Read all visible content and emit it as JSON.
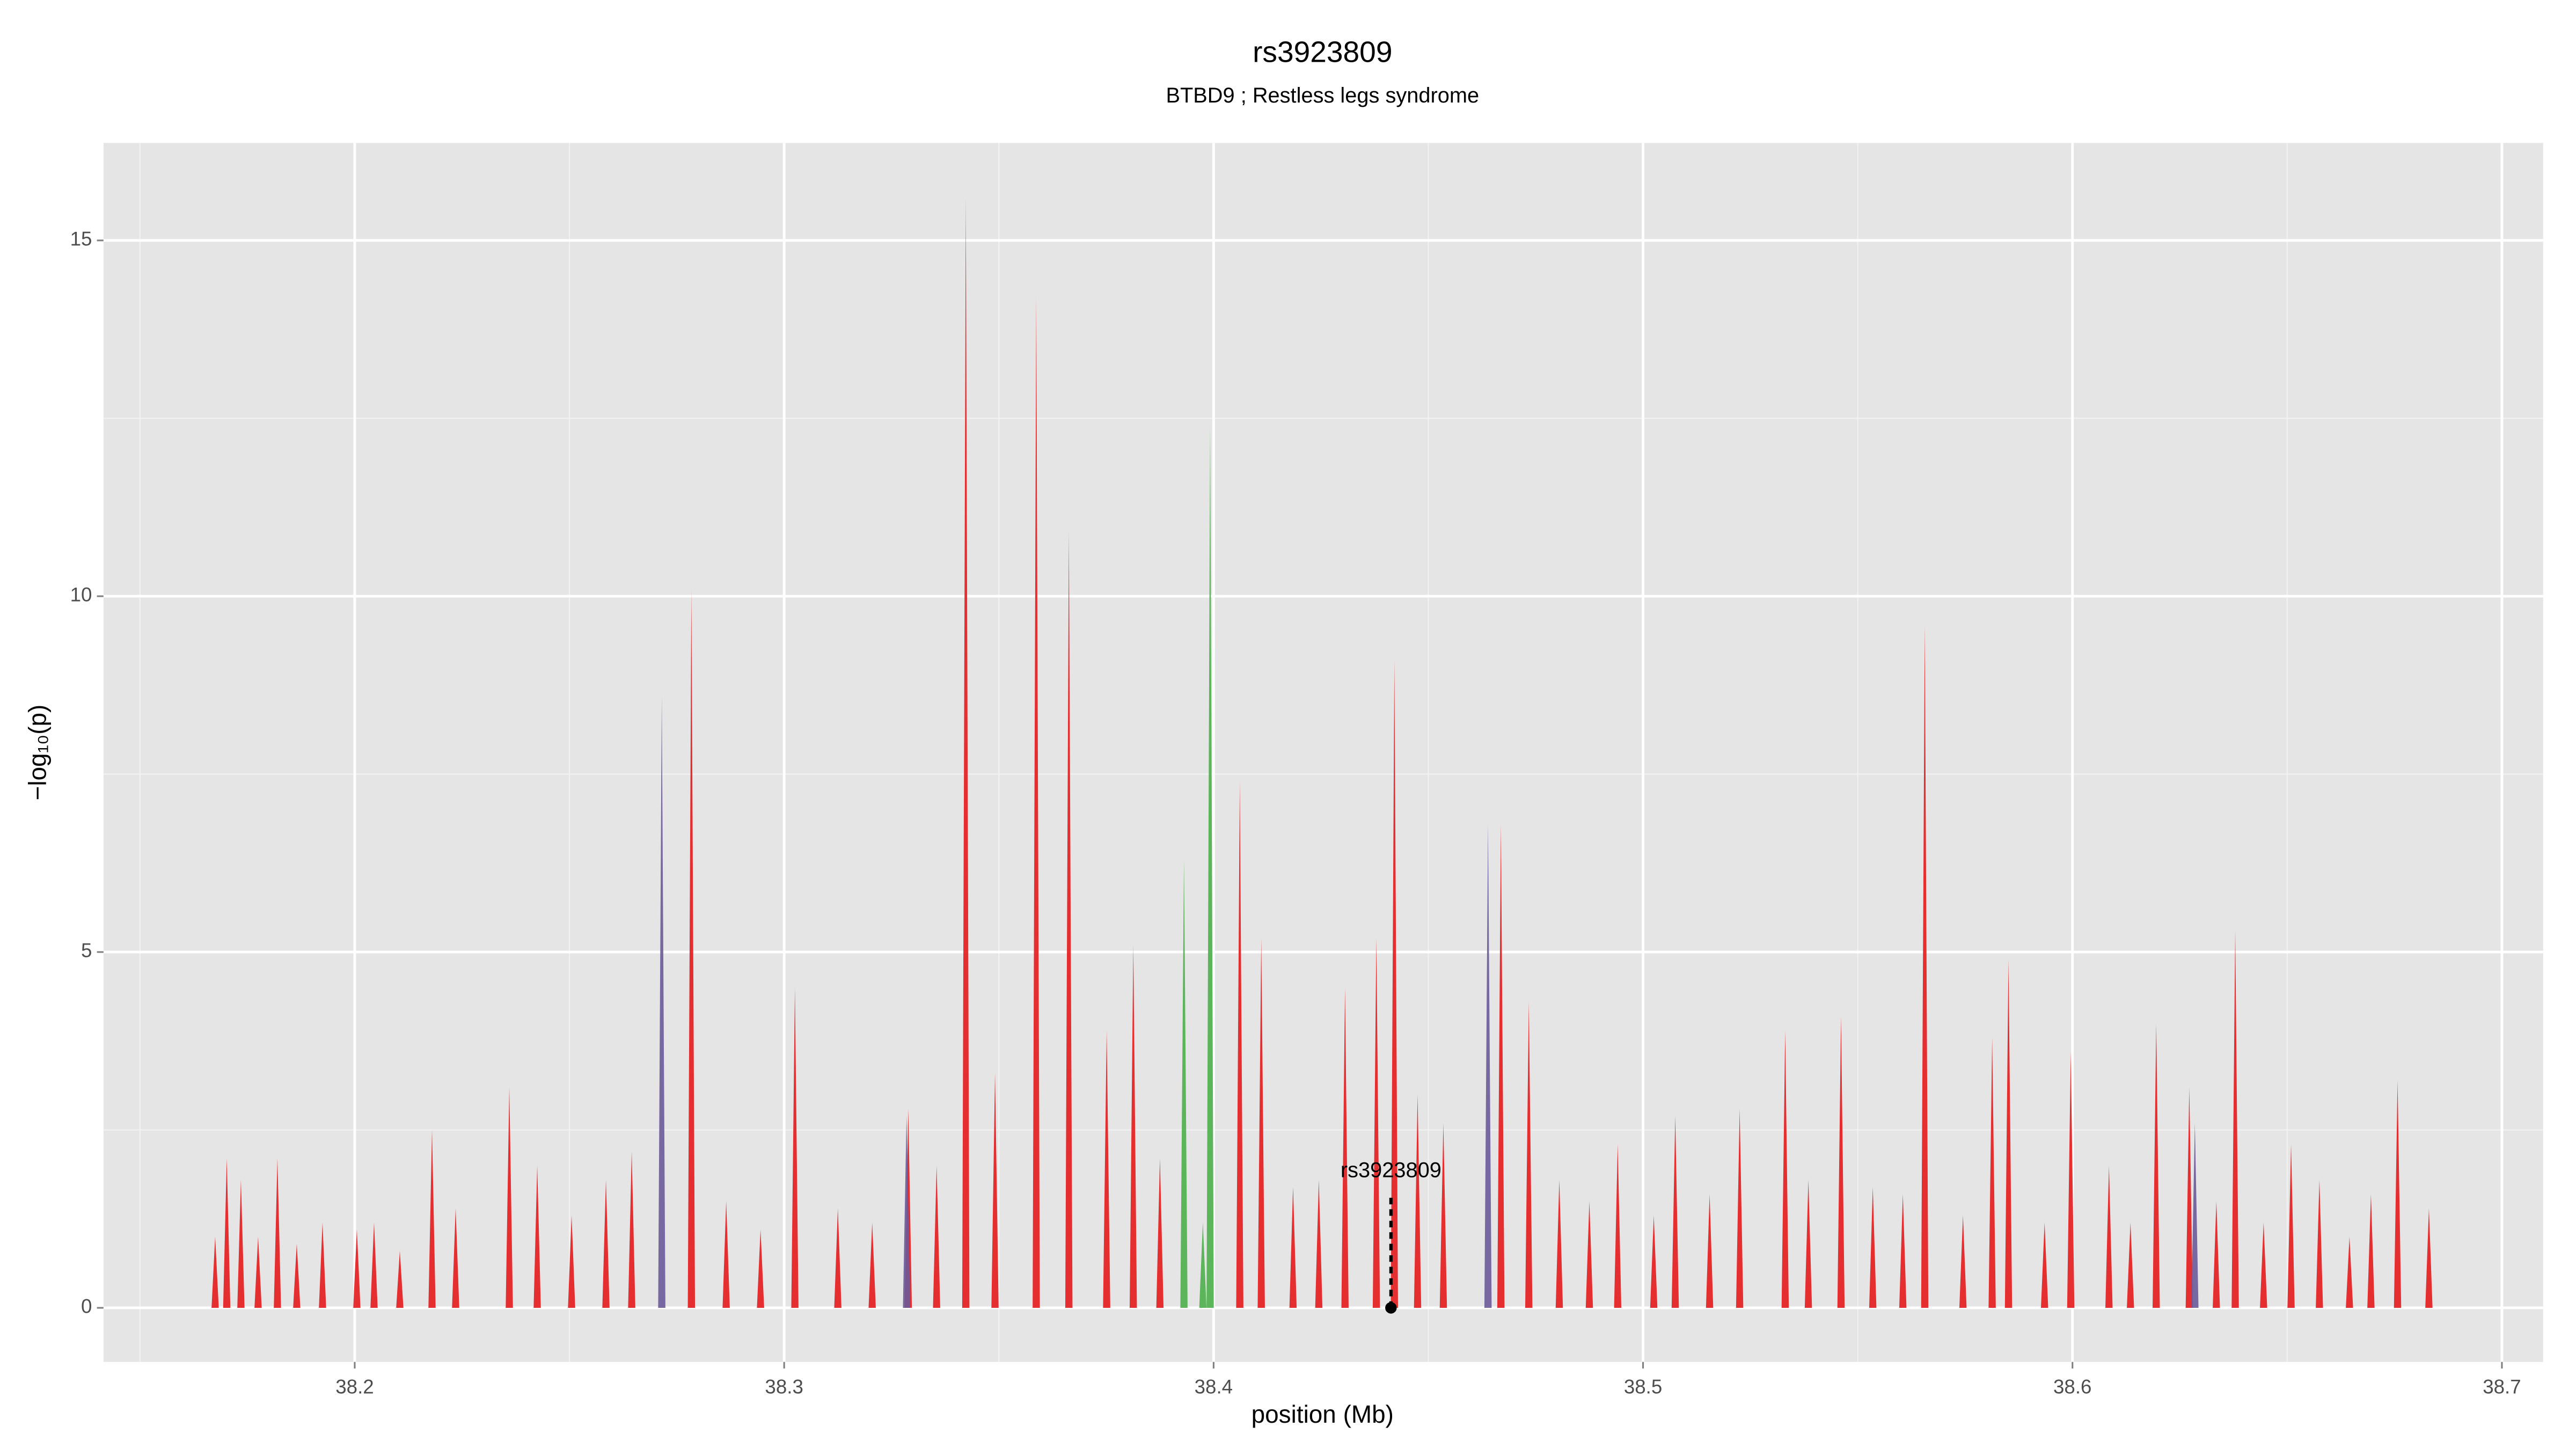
{
  "chart_data": {
    "type": "spike",
    "title": "rs3923809",
    "subtitle": "BTBD9 ; Restless legs syndrome",
    "x_label": "position (Mb)",
    "y_label": "−log₁₀(p)",
    "xlim": [
      38.1415,
      38.7096
    ],
    "ylim": [
      -0.76,
      16.37
    ],
    "xticks": [
      38.2,
      38.3,
      38.4,
      38.5,
      38.6,
      38.7
    ],
    "yticks": [
      0,
      5,
      10,
      15
    ],
    "minor_xticks": [
      38.15,
      38.25,
      38.35,
      38.45,
      38.55,
      38.65
    ],
    "minor_yticks": [
      2.5,
      7.5,
      12.5
    ],
    "grid": true,
    "series": [
      {
        "color": "#e41a1c",
        "x": [
          38.1675,
          38.1702,
          38.1735,
          38.1775,
          38.182,
          38.1865,
          38.1925,
          38.2005,
          38.2045,
          38.2105,
          38.218,
          38.2235,
          38.236,
          38.2425,
          38.2505,
          38.2585,
          38.2645,
          38.2784,
          38.2865,
          38.2945,
          38.3025,
          38.3125,
          38.3205,
          38.3289,
          38.3355,
          38.3423,
          38.3491,
          38.3587,
          38.3663,
          38.3751,
          38.3813,
          38.3875,
          38.4061,
          38.4111,
          38.4185,
          38.4245,
          38.4306,
          38.4379,
          38.4421,
          38.4475,
          38.4535,
          38.4669,
          38.4734,
          38.4805,
          38.4875,
          38.4941,
          38.5025,
          38.5075,
          38.5155,
          38.5225,
          38.5331,
          38.5385,
          38.5461,
          38.5535,
          38.5605,
          38.5656,
          38.5745,
          38.5813,
          38.5851,
          38.5935,
          38.5996,
          38.6085,
          38.6135,
          38.6195,
          38.6272,
          38.6335,
          38.6379,
          38.6445,
          38.6509,
          38.6575,
          38.6645,
          38.6695,
          38.6757,
          38.683
        ],
        "values": [
          1.0,
          2.1,
          1.8,
          1.0,
          2.1,
          0.9,
          1.2,
          1.1,
          1.2,
          0.8,
          2.5,
          1.4,
          3.1,
          2.0,
          1.3,
          1.8,
          2.2,
          10.1,
          1.5,
          1.1,
          4.5,
          1.4,
          1.2,
          2.8,
          2.0,
          15.6,
          3.3,
          14.2,
          10.9,
          3.9,
          5.1,
          2.1,
          7.4,
          5.2,
          1.7,
          1.8,
          4.5,
          5.2,
          9.1,
          3.0,
          2.6,
          6.8,
          4.3,
          1.8,
          1.5,
          2.3,
          1.3,
          2.7,
          1.6,
          2.8,
          3.9,
          1.8,
          4.1,
          1.7,
          1.6,
          9.6,
          1.3,
          3.8,
          4.9,
          1.2,
          3.6,
          2.0,
          1.2,
          4.0,
          3.1,
          1.5,
          5.3,
          1.2,
          2.3,
          1.8,
          1.0,
          1.6,
          3.2,
          1.4
        ]
      },
      {
        "color": "#4daf4a",
        "x": [
          38.3931,
          38.3975,
          38.3992
        ],
        "values": [
          6.3,
          1.2,
          12.4
        ]
      },
      {
        "color": "#6a5a9a",
        "x": [
          38.2715,
          38.3285,
          38.4639,
          38.6285
        ],
        "values": [
          8.6,
          2.7,
          6.8,
          2.6
        ]
      }
    ],
    "annotations": [
      {
        "text": "rs3923809",
        "x": 38.4413,
        "y": 0
      }
    ]
  }
}
